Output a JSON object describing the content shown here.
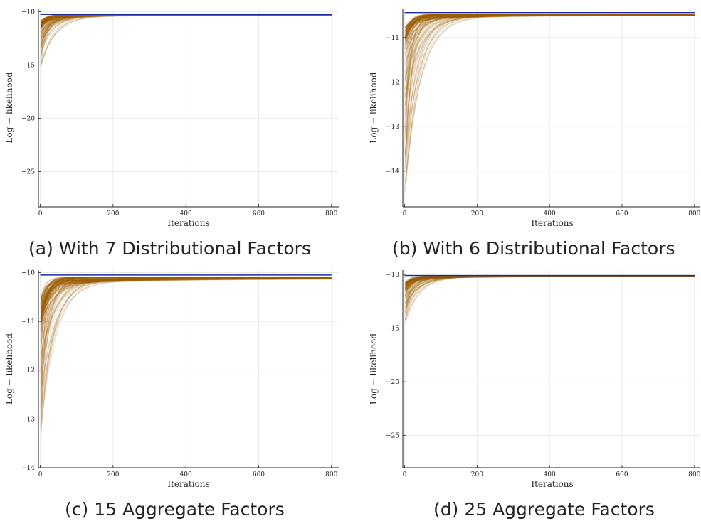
{
  "colors": {
    "reference_line": "#1c2aa8",
    "runs": "#9a5c00",
    "grid": "#e6e6e6",
    "axis": "#222222"
  },
  "chart_data": [
    {
      "type": "line",
      "caption": "(a) With 7 Distributional Factors",
      "xlabel": "Iterations",
      "ylabel": "Log − likelihood",
      "xlim": [
        -5,
        820
      ],
      "ylim": [
        -28.3,
        -9.7
      ],
      "xticks": [
        0,
        200,
        400,
        600,
        800
      ],
      "xtick_labels": [
        "0",
        "200",
        "400",
        "600",
        "800"
      ],
      "yticks": [
        -10,
        -15,
        -20,
        -25
      ],
      "ytick_labels": [
        "−10",
        "−15",
        "−20",
        "−25"
      ],
      "grid": true,
      "series": [
        {
          "role": "reference",
          "x": [
            0,
            800
          ],
          "y": [
            -10.25,
            -10.25
          ]
        },
        {
          "role": "runs",
          "start_range": [
            -15.5,
            -10.9
          ],
          "final": -10.3,
          "x_end": 800
        }
      ]
    },
    {
      "type": "line",
      "caption": "(b) With 6 Distributional Factors",
      "xlabel": "Iterations",
      "ylabel": "Log − likelihood",
      "xlim": [
        -5,
        820
      ],
      "ylim": [
        -14.8,
        -10.35
      ],
      "xticks": [
        0,
        200,
        400,
        600,
        800
      ],
      "xtick_labels": [
        "0",
        "200",
        "400",
        "600",
        "800"
      ],
      "yticks": [
        -11,
        -12,
        -13,
        -14
      ],
      "ytick_labels": [
        "−11",
        "−12",
        "−13",
        "−14"
      ],
      "grid": true,
      "series": [
        {
          "role": "reference",
          "x": [
            0,
            800
          ],
          "y": [
            -10.44,
            -10.44
          ]
        },
        {
          "role": "runs",
          "start_range": [
            -14.7,
            -10.8
          ],
          "final": -10.48,
          "x_end": 800
        }
      ]
    },
    {
      "type": "line",
      "caption": "(c) 15 Aggregate Factors",
      "xlabel": "Iterations",
      "ylabel": "Log − likelihood",
      "xlim": [
        -5,
        820
      ],
      "ylim": [
        -14.0,
        -9.95
      ],
      "xticks": [
        0,
        200,
        400,
        600,
        800
      ],
      "xtick_labels": [
        "0",
        "200",
        "400",
        "600",
        "800"
      ],
      "yticks": [
        -10,
        -11,
        -12,
        -13,
        -14
      ],
      "ytick_labels": [
        "−10",
        "−11",
        "−12",
        "−13",
        "−14"
      ],
      "grid": true,
      "series": [
        {
          "role": "reference",
          "x": [
            0,
            800
          ],
          "y": [
            -10.05,
            -10.05
          ]
        },
        {
          "role": "runs",
          "start_range": [
            -13.6,
            -10.6
          ],
          "final": -10.1,
          "x_end": 800
        }
      ]
    },
    {
      "type": "line",
      "caption": "(d) 25 Aggregate Factors",
      "xlabel": "Iterations",
      "ylabel": "Log − likelihood",
      "xlim": [
        -5,
        820
      ],
      "ylim": [
        -28.0,
        -9.6
      ],
      "xticks": [
        0,
        200,
        400,
        600,
        800
      ],
      "xtick_labels": [
        "0",
        "200",
        "400",
        "600",
        "800"
      ],
      "yticks": [
        -10,
        -15,
        -20,
        -25
      ],
      "ytick_labels": [
        "−10",
        "−15",
        "−20",
        "−25"
      ],
      "grid": true,
      "series": [
        {
          "role": "reference",
          "x": [
            0,
            800
          ],
          "y": [
            -10.1,
            -10.1
          ]
        },
        {
          "role": "runs",
          "start_range": [
            -15.0,
            -10.8
          ],
          "final": -10.15,
          "x_end": 800
        }
      ]
    }
  ]
}
